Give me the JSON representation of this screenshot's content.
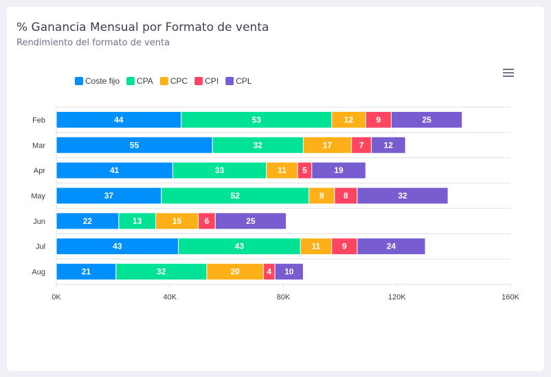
{
  "title": "% Ganancia Mensual por Formato de venta",
  "subtitle": "Rendimiento del formato de venta",
  "menu_icon": "hamburger-menu-icon",
  "chart_data": {
    "type": "bar",
    "orientation": "horizontal",
    "stacked": true,
    "categories": [
      "Feb",
      "Mar",
      "Apr",
      "May",
      "Jun",
      "Jul",
      "Aug"
    ],
    "series": [
      {
        "name": "Coste fijo",
        "color": "#008ffb",
        "values": [
          44,
          55,
          41,
          37,
          22,
          43,
          21
        ]
      },
      {
        "name": "CPA",
        "color": "#00e396",
        "values": [
          53,
          32,
          33,
          52,
          13,
          43,
          32
        ]
      },
      {
        "name": "CPC",
        "color": "#feb019",
        "values": [
          12,
          17,
          11,
          9,
          15,
          11,
          20
        ]
      },
      {
        "name": "CPI",
        "color": "#ff4560",
        "values": [
          9,
          7,
          5,
          8,
          6,
          9,
          4
        ]
      },
      {
        "name": "CPL",
        "color": "#775dd0",
        "values": [
          25,
          12,
          19,
          32,
          25,
          24,
          10
        ]
      }
    ],
    "value_scale": 1000,
    "xlim": [
      0,
      160000
    ],
    "x_ticks": [
      "0K",
      "40K",
      "80K",
      "120K",
      "160K"
    ],
    "legend": "top-left",
    "grid": true
  }
}
